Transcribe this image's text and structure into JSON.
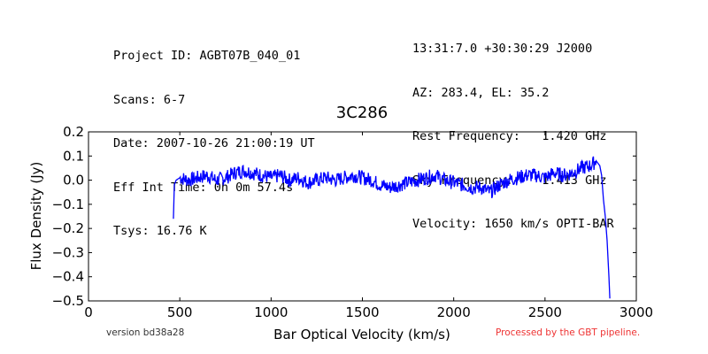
{
  "header": {
    "left": [
      "Project ID: AGBT07B_040_01",
      "Scans: 6-7",
      "Date: 2007-10-26 21:00:19 UT",
      "Eff Int Time: 0h 0m 57.4s",
      "Tsys: 16.76 K"
    ],
    "right": [
      "13:31:7.0 +30:30:29 J2000",
      "AZ: 283.4, EL: 35.2",
      "Rest Frequency:   1.420 GHz",
      "Sky Frequency:    1.413 GHz",
      "Velocity: 1650 km/s OPTI-BAR"
    ]
  },
  "footer": {
    "version": "version bd38a28",
    "processed": "Processed by the GBT pipeline."
  },
  "colors": {
    "line": "#0000ff",
    "processed": "#ee3333"
  },
  "chart_data": {
    "type": "line",
    "title": "3C286",
    "xlabel": "Bar Optical Velocity (km/s)",
    "ylabel": "Flux Density (Jy)",
    "xlim": [
      0,
      3000
    ],
    "ylim": [
      -0.5,
      0.2
    ],
    "xticks": [
      0,
      500,
      1000,
      1500,
      2000,
      2500,
      3000
    ],
    "yticks": [
      0.2,
      0.1,
      0.0,
      -0.1,
      -0.2,
      -0.3,
      -0.4,
      -0.5
    ],
    "yticklabels": [
      "0.2",
      "0.1",
      "0.0",
      "−0.1",
      "−0.2",
      "−0.3",
      "−0.4",
      "−0.5"
    ],
    "grid": false,
    "series": [
      {
        "x": [
          465,
          470,
          480,
          500,
          550,
          600,
          650,
          700,
          750,
          800,
          850,
          900,
          950,
          1000,
          1050,
          1100,
          1150,
          1200,
          1250,
          1300,
          1350,
          1400,
          1450,
          1500,
          1550,
          1600,
          1650,
          1700,
          1750,
          1800,
          1850,
          1900,
          1950,
          2000,
          2050,
          2100,
          2150,
          2200,
          2250,
          2300,
          2350,
          2400,
          2450,
          2500,
          2550,
          2600,
          2650,
          2700,
          2750,
          2780,
          2800,
          2810,
          2820,
          2830,
          2840,
          2850,
          2855
        ],
        "y": [
          -0.16,
          -0.02,
          0.0,
          0.01,
          0.0,
          0.01,
          0.02,
          0.0,
          0.01,
          0.03,
          0.04,
          0.03,
          0.02,
          0.01,
          0.02,
          0.0,
          0.01,
          -0.01,
          0.0,
          0.01,
          0.0,
          0.01,
          0.02,
          0.01,
          0.0,
          -0.02,
          -0.03,
          -0.02,
          -0.01,
          0.0,
          0.01,
          0.02,
          0.0,
          -0.01,
          -0.02,
          -0.03,
          -0.03,
          -0.05,
          -0.02,
          0.0,
          0.01,
          0.02,
          0.02,
          0.01,
          0.03,
          0.02,
          0.03,
          0.05,
          0.06,
          0.08,
          0.06,
          0.02,
          -0.08,
          -0.15,
          -0.25,
          -0.4,
          -0.49
        ]
      }
    ]
  }
}
